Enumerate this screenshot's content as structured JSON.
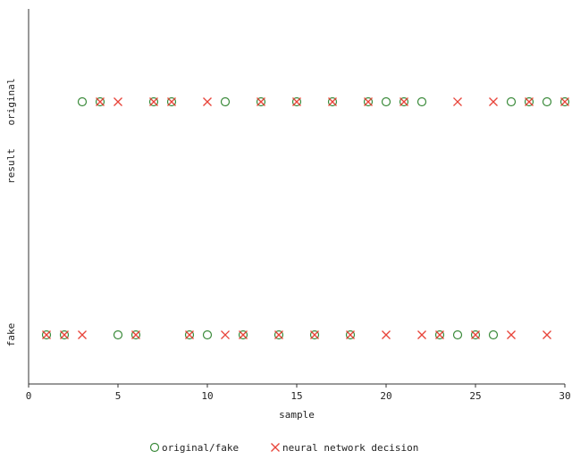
{
  "chart_data": {
    "type": "scatter",
    "xlabel": "sample",
    "ylabel": "result",
    "xlim": [
      0,
      30
    ],
    "x_ticks": [
      0,
      5,
      10,
      15,
      20,
      25,
      30
    ],
    "y_categories": [
      "fake",
      "original"
    ],
    "grid": false,
    "legend_position": "bottom",
    "series": [
      {
        "name": "original/fake",
        "marker": "circle",
        "color": "#3a8a3a",
        "points": [
          {
            "x": 1,
            "y": "fake"
          },
          {
            "x": 2,
            "y": "fake"
          },
          {
            "x": 3,
            "y": "original"
          },
          {
            "x": 4,
            "y": "original"
          },
          {
            "x": 5,
            "y": "fake"
          },
          {
            "x": 6,
            "y": "fake"
          },
          {
            "x": 7,
            "y": "original"
          },
          {
            "x": 8,
            "y": "original"
          },
          {
            "x": 9,
            "y": "fake"
          },
          {
            "x": 10,
            "y": "fake"
          },
          {
            "x": 11,
            "y": "original"
          },
          {
            "x": 12,
            "y": "fake"
          },
          {
            "x": 13,
            "y": "original"
          },
          {
            "x": 14,
            "y": "fake"
          },
          {
            "x": 15,
            "y": "original"
          },
          {
            "x": 16,
            "y": "fake"
          },
          {
            "x": 17,
            "y": "original"
          },
          {
            "x": 18,
            "y": "fake"
          },
          {
            "x": 19,
            "y": "original"
          },
          {
            "x": 20,
            "y": "original"
          },
          {
            "x": 21,
            "y": "original"
          },
          {
            "x": 22,
            "y": "original"
          },
          {
            "x": 23,
            "y": "fake"
          },
          {
            "x": 24,
            "y": "fake"
          },
          {
            "x": 25,
            "y": "fake"
          },
          {
            "x": 26,
            "y": "fake"
          },
          {
            "x": 27,
            "y": "original"
          },
          {
            "x": 28,
            "y": "original"
          },
          {
            "x": 29,
            "y": "original"
          },
          {
            "x": 30,
            "y": "original"
          }
        ]
      },
      {
        "name": "neural network decision",
        "marker": "x",
        "color": "#e8443a",
        "points": [
          {
            "x": 1,
            "y": "fake"
          },
          {
            "x": 2,
            "y": "fake"
          },
          {
            "x": 3,
            "y": "fake"
          },
          {
            "x": 4,
            "y": "original"
          },
          {
            "x": 5,
            "y": "original"
          },
          {
            "x": 6,
            "y": "fake"
          },
          {
            "x": 7,
            "y": "original"
          },
          {
            "x": 8,
            "y": "original"
          },
          {
            "x": 9,
            "y": "fake"
          },
          {
            "x": 10,
            "y": "original"
          },
          {
            "x": 11,
            "y": "fake"
          },
          {
            "x": 12,
            "y": "fake"
          },
          {
            "x": 13,
            "y": "original"
          },
          {
            "x": 14,
            "y": "fake"
          },
          {
            "x": 15,
            "y": "original"
          },
          {
            "x": 16,
            "y": "fake"
          },
          {
            "x": 17,
            "y": "original"
          },
          {
            "x": 18,
            "y": "fake"
          },
          {
            "x": 19,
            "y": "original"
          },
          {
            "x": 20,
            "y": "fake"
          },
          {
            "x": 21,
            "y": "original"
          },
          {
            "x": 22,
            "y": "fake"
          },
          {
            "x": 23,
            "y": "fake"
          },
          {
            "x": 24,
            "y": "original"
          },
          {
            "x": 25,
            "y": "fake"
          },
          {
            "x": 26,
            "y": "original"
          },
          {
            "x": 27,
            "y": "fake"
          },
          {
            "x": 28,
            "y": "original"
          },
          {
            "x": 29,
            "y": "fake"
          },
          {
            "x": 30,
            "y": "original"
          }
        ]
      }
    ]
  }
}
